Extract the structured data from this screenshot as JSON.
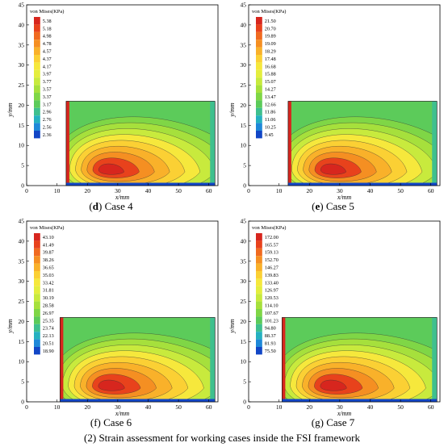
{
  "footer": "(2) Strain assessment for working cases inside the FSI framework",
  "legend_title": "von Mises(KPa)",
  "chart_data": [
    {
      "type": "heatmap",
      "caption_letter": "d",
      "caption_text": "Case 4",
      "xlabel": "x/mm",
      "ylabel": "y/mm",
      "xlim": [
        0,
        63
      ],
      "ylim": [
        0,
        45
      ],
      "x_ticks": [
        0,
        10,
        20,
        30,
        40,
        50,
        60
      ],
      "y_ticks": [
        0,
        5,
        10,
        15,
        20,
        25,
        30,
        35,
        40,
        45
      ],
      "domain": {
        "x": [
          13,
          62
        ],
        "y": [
          0,
          21
        ]
      },
      "legend_levels": [
        "5.38",
        "5.18",
        "4.98",
        "4.78",
        "4.57",
        "4.37",
        "4.17",
        "3.97",
        "3.77",
        "3.57",
        "3.37",
        "3.17",
        "2.96",
        "2.76",
        "2.56",
        "2.36"
      ]
    },
    {
      "type": "heatmap",
      "caption_letter": "e",
      "caption_text": "Case 5",
      "xlabel": "x/mm",
      "ylabel": "y/mm",
      "xlim": [
        0,
        63
      ],
      "ylim": [
        0,
        45
      ],
      "x_ticks": [
        0,
        10,
        20,
        30,
        40,
        50,
        60
      ],
      "y_ticks": [
        0,
        5,
        10,
        15,
        20,
        25,
        30,
        35,
        40,
        45
      ],
      "domain": {
        "x": [
          13,
          62
        ],
        "y": [
          0,
          21
        ]
      },
      "legend_levels": [
        "21.50",
        "20.70",
        "19.89",
        "19.09",
        "18.29",
        "17.48",
        "16.68",
        "15.88",
        "15.07",
        "14.27",
        "13.47",
        "12.66",
        "11.86",
        "11.06",
        "10.25",
        "9.45"
      ]
    },
    {
      "type": "heatmap",
      "caption_letter": "f",
      "caption_text": "Case 6",
      "xlabel": "x/mm",
      "ylabel": "y/mm",
      "xlim": [
        0,
        63
      ],
      "ylim": [
        0,
        45
      ],
      "x_ticks": [
        0,
        10,
        20,
        30,
        40,
        50,
        60
      ],
      "y_ticks": [
        0,
        5,
        10,
        15,
        20,
        25,
        30,
        35,
        40,
        45
      ],
      "domain": {
        "x": [
          11,
          62
        ],
        "y": [
          0,
          21
        ]
      },
      "legend_levels": [
        "43.10",
        "41.49",
        "39.87",
        "38.26",
        "36.65",
        "35.03",
        "33.42",
        "31.81",
        "30.19",
        "28.58",
        "26.97",
        "25.35",
        "23.74",
        "22.13",
        "20.51",
        "18.90"
      ]
    },
    {
      "type": "heatmap",
      "caption_letter": "g",
      "caption_text": "Case 7",
      "xlabel": "x/mm",
      "ylabel": "y/mm",
      "xlim": [
        0,
        63
      ],
      "ylim": [
        0,
        45
      ],
      "x_ticks": [
        0,
        10,
        20,
        30,
        40,
        50,
        60
      ],
      "y_ticks": [
        0,
        5,
        10,
        15,
        20,
        25,
        30,
        35,
        40,
        45
      ],
      "domain": {
        "x": [
          11,
          62
        ],
        "y": [
          0,
          21
        ]
      },
      "legend_levels": [
        "172.00",
        "165.57",
        "159.13",
        "152.70",
        "146.27",
        "139.83",
        "133.40",
        "126.97",
        "120.53",
        "114.10",
        "107.67",
        "101.23",
        "94.80",
        "88.37",
        "81.93",
        "75.50"
      ]
    }
  ],
  "colors": {
    "levels": [
      "#d7261e",
      "#e8421c",
      "#f06a20",
      "#f58f22",
      "#f9b12a",
      "#fbd034",
      "#f6e83c",
      "#e4ee3e",
      "#c8ea3d",
      "#a6e03c",
      "#7fd646",
      "#5ccb5a",
      "#3fc08e",
      "#25b1c0",
      "#1e88d8",
      "#1246c6"
    ],
    "frame": "#000000"
  }
}
